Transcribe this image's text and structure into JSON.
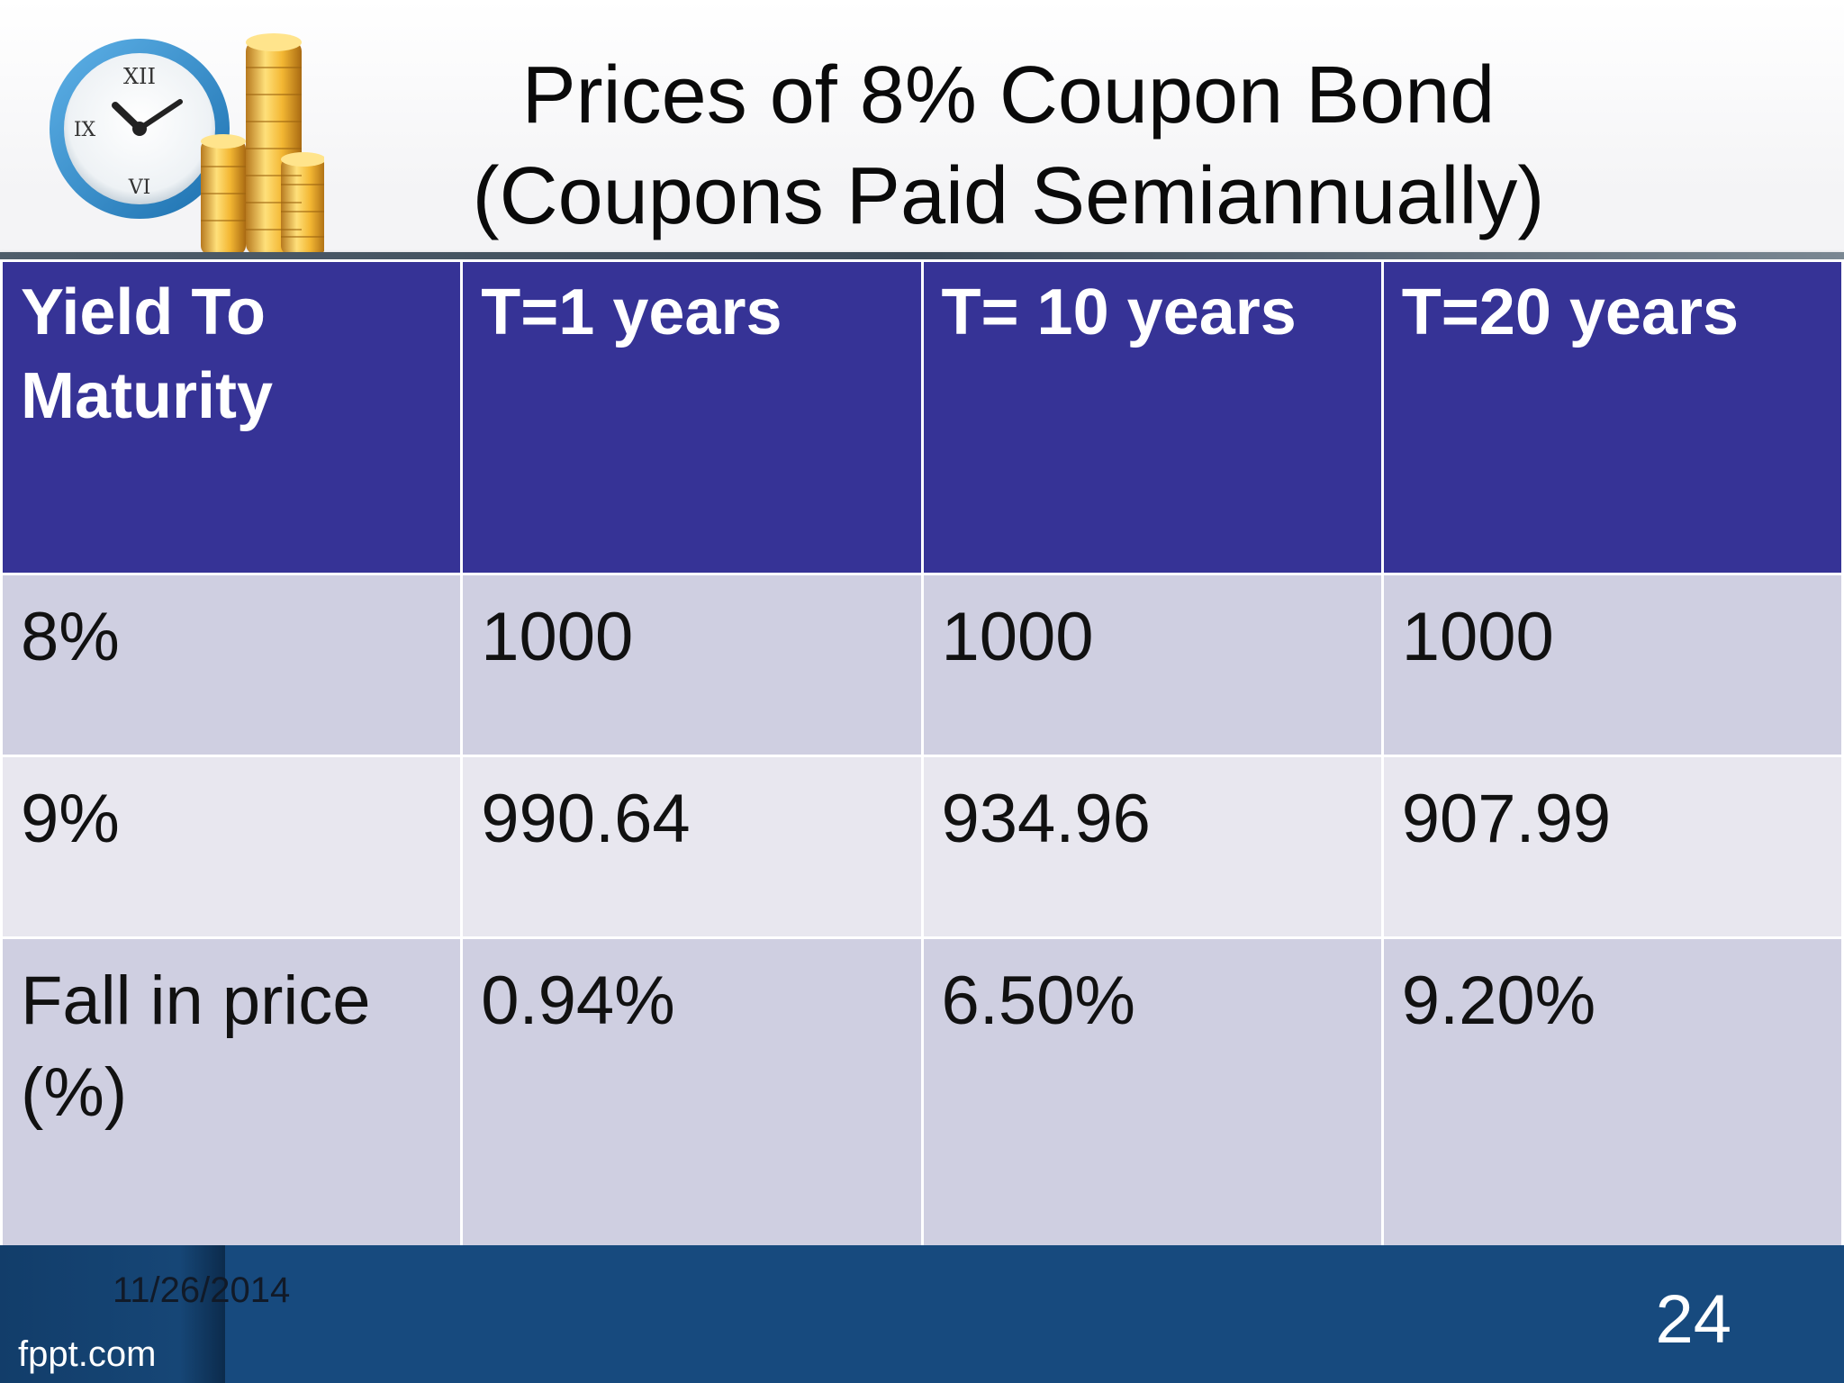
{
  "slide": {
    "title_line1": "Prices of 8% Coupon Bond",
    "title_line2": "(Coupons Paid Semiannually)"
  },
  "table": {
    "headers": [
      "Yield To Maturity",
      "T=1 years",
      "T= 10 years",
      "T=20 years"
    ],
    "rows": [
      [
        "8%",
        "1000",
        "1000",
        "1000"
      ],
      [
        "9%",
        "990.64",
        "934.96",
        "907.99"
      ],
      [
        "Fall in price (%)",
        "0.94%",
        "6.50%",
        "9.20%"
      ]
    ]
  },
  "footer": {
    "date": "11/26/2014",
    "brand": "fppt.com",
    "page_number": "24"
  },
  "colors": {
    "header_fill": "#363396",
    "row_fill_dark": "#cfcfe1",
    "row_fill_light": "#e8e7ef",
    "footer_fill": "#174a7e"
  },
  "icons": [
    "clock-icon",
    "gold-coins-icon"
  ]
}
